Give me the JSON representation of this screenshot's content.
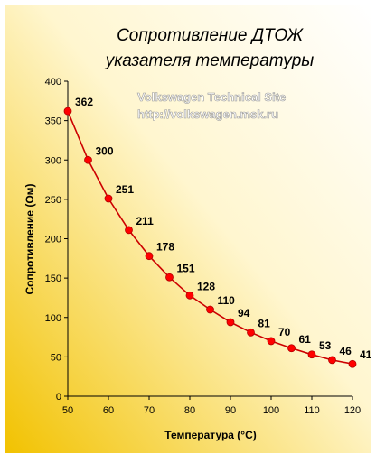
{
  "chart_data": {
    "type": "line",
    "title_line1": "Сопротивление ДТОЖ",
    "title_line2": "указателя температуры",
    "xlabel": "Температура (°C)",
    "ylabel": "Сопротивление (Ом)",
    "x": [
      50,
      55,
      60,
      65,
      70,
      75,
      80,
      85,
      90,
      95,
      100,
      105,
      110,
      115,
      120
    ],
    "series": [
      {
        "values": [
          362,
          300,
          251,
          211,
          178,
          151,
          128,
          110,
          94,
          81,
          70,
          61,
          53,
          46,
          41
        ]
      }
    ],
    "xlim": [
      50,
      120
    ],
    "ylim": [
      0,
      400
    ],
    "xticks": [
      50,
      60,
      70,
      80,
      90,
      100,
      110,
      120
    ],
    "yticks": [
      0,
      50,
      100,
      150,
      200,
      250,
      300,
      350,
      400
    ],
    "grid": false,
    "legend": "none",
    "colors": {
      "line": "#cc0000",
      "marker": "#ff0000",
      "bg_light": "#ffffff",
      "bg_dark": "#f2c200"
    }
  },
  "watermark": {
    "line1": "Volkswagen Technical Site",
    "line2": "http://volkswagen.msk.ru"
  }
}
